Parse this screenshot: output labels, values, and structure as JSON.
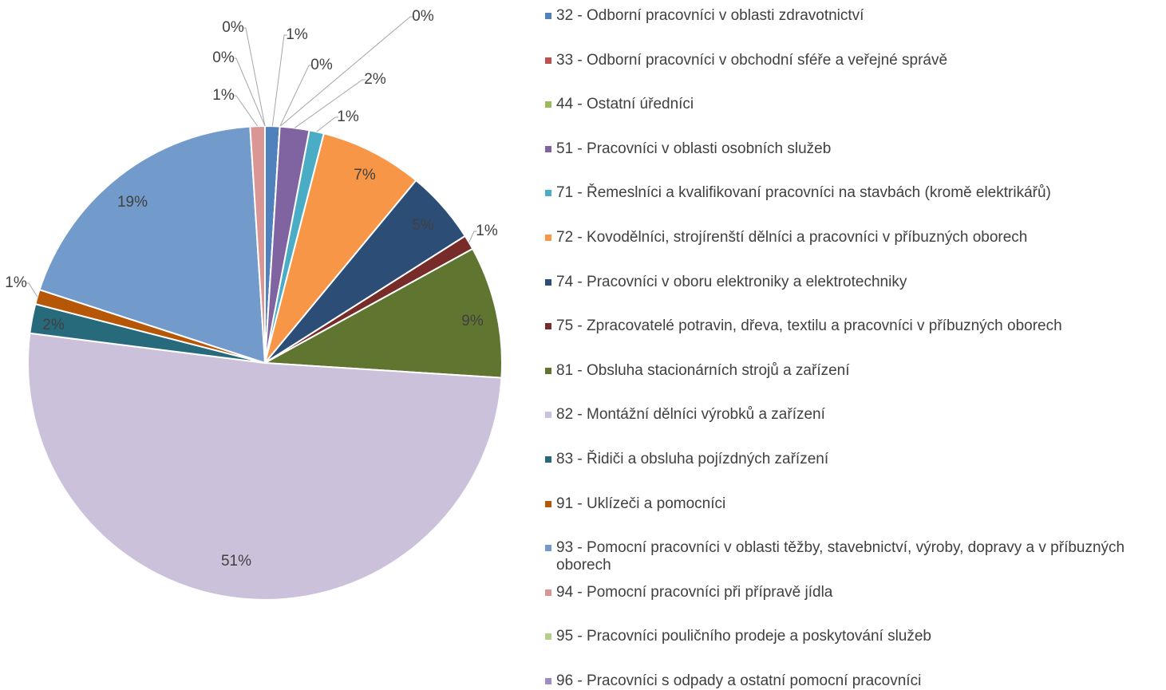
{
  "chart_data": {
    "type": "pie",
    "categories": [
      "32 - Odborní pracovníci v oblasti zdravotnictví",
      "33 - Odborní pracovníci v obchodní sféře a veřejné správě",
      "44 - Ostatní úředníci",
      "51 - Pracovníci v oblasti osobních služeb",
      "71 - Řemeslníci a kvalifikovaní pracovníci na stavbách (kromě elektrikářů)",
      "72 - Kovodělníci, strojírenští dělníci a pracovníci v příbuzných oborech",
      "74 - Pracovníci v oboru elektroniky a elektrotechniky",
      "75 - Zpracovatelé potravin, dřeva, textilu a pracovníci v příbuzných oborech",
      "81 - Obsluha stacionárních strojů a zařízení",
      "82 - Montážní dělníci výrobků a zařízení",
      "83 - Řidiči a obsluha pojízdných zařízení",
      "91 - Uklízeči a pomocníci",
      "93 - Pomocní pracovníci v oblasti těžby, stavebnictví, výroby, dopravy a v příbuzných oborech",
      "94 - Pomocní pracovníci při přípravě jídla",
      "95 - Pracovníci pouličního prodeje a poskytování služeb",
      "96 - Pracovníci s odpady a ostatní pomocní pracovníci"
    ],
    "values": [
      1,
      0,
      0,
      2,
      1,
      7,
      5,
      1,
      9,
      51,
      2,
      1,
      19,
      1,
      0,
      0
    ],
    "value_labels": [
      "1%",
      "0%",
      "0%",
      "2%",
      "1%",
      "7%",
      "5%",
      "1%",
      "9%",
      "51%",
      "2%",
      "1%",
      "19%",
      "1%",
      "0%",
      "0%"
    ],
    "colors": [
      "#4f81bd",
      "#c0504d",
      "#9bbb59",
      "#8064a2",
      "#4bacc6",
      "#f79646",
      "#2c4d75",
      "#772c2a",
      "#5f7530",
      "#ccc1da",
      "#276a7c",
      "#b65708",
      "#729aca",
      "#d99694",
      "#b3d08a",
      "#9f8cc2"
    ]
  }
}
